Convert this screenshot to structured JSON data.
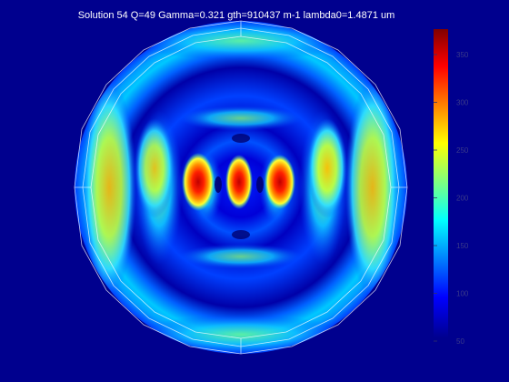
{
  "title": "Solution 54 Q=49 Gamma=0.321 gth=910437 m-1 lambda0=1.4871 um",
  "colorbar": {
    "colormap": "jet",
    "tick_labels": [
      "350",
      "300",
      "250",
      "200",
      "150",
      "100",
      "50"
    ]
  }
}
